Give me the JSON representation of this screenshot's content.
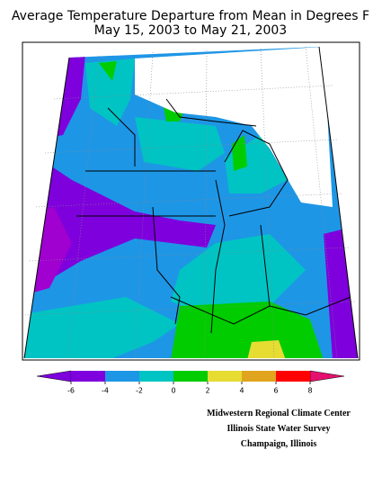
{
  "header": {
    "title": "Average Temperature Departure from Mean in Degrees F",
    "subtitle": "May 15, 2003 to May 21, 2003"
  },
  "legend": {
    "ticks": [
      -6,
      -4,
      -2,
      0,
      2,
      4,
      6,
      8
    ],
    "colors": [
      "#7e00dc",
      "#1e96e6",
      "#00c4c4",
      "#00cc00",
      "#e6dc32",
      "#e0a41e",
      "#ff0000"
    ],
    "under_color": "#7e00dc",
    "over_color": "#e6106e"
  },
  "credits": [
    "Midwestern Regional Climate Center",
    "Illinois State Water Survey",
    "Champaign, Illinois"
  ]
}
